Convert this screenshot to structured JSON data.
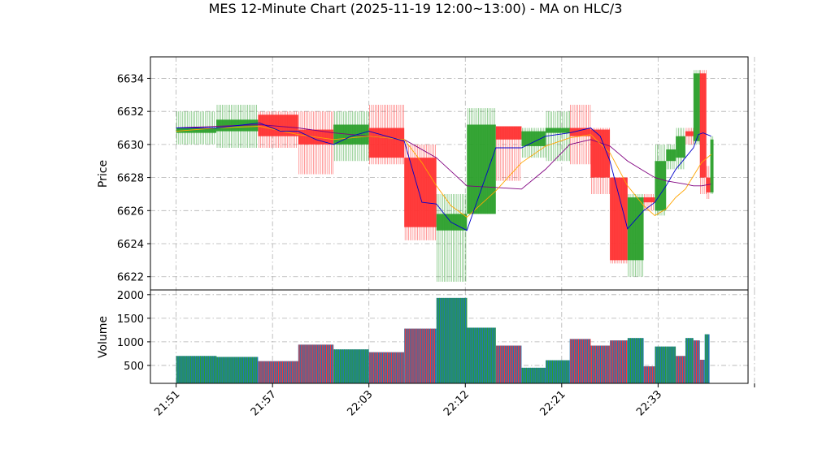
{
  "chart_data": [
    {
      "type": "candlestick",
      "title": "MES 12-Minute Chart (2025-11-19 12:00~13:00) - MA on HLC/3",
      "ylabel": "Price",
      "ylim": [
        6621.2,
        6635.3
      ],
      "yticks": [
        6622,
        6624,
        6626,
        6628,
        6630,
        6632,
        6634
      ],
      "xticks": [
        "21:51",
        "21:57",
        "22:03",
        "22:12",
        "22:21",
        "22:33"
      ],
      "grid": true,
      "colors": {
        "up": "#2ca02c",
        "down": "#ff3333",
        "ma_fast": "#0000cc",
        "ma_mid": "#ffa500",
        "ma_slow": "#800080"
      },
      "candles": [
        {
          "t": 0,
          "w": 2.5,
          "o": 6630.7,
          "h": 6632.0,
          "l": 6630.0,
          "c": 6631.0
        },
        {
          "t": 2.5,
          "w": 2.6,
          "o": 6630.8,
          "h": 6632.4,
          "l": 6629.8,
          "c": 6631.5
        },
        {
          "t": 5.1,
          "w": 2.5,
          "o": 6631.8,
          "h": 6632.0,
          "l": 6629.8,
          "c": 6630.5
        },
        {
          "t": 7.6,
          "w": 2.2,
          "o": 6630.9,
          "h": 6632.0,
          "l": 6628.2,
          "c": 6630.0
        },
        {
          "t": 9.8,
          "w": 2.2,
          "o": 6630.0,
          "h": 6632.0,
          "l": 6629.0,
          "c": 6631.2
        },
        {
          "t": 12.0,
          "w": 2.2,
          "o": 6631.0,
          "h": 6632.4,
          "l": 6628.8,
          "c": 6629.2
        },
        {
          "t": 14.2,
          "w": 2.0,
          "o": 6629.2,
          "h": 6630.0,
          "l": 6624.2,
          "c": 6625.0
        },
        {
          "t": 16.2,
          "w": 1.9,
          "o": 6624.8,
          "h": 6627.0,
          "l": 6621.7,
          "c": 6625.8
        },
        {
          "t": 18.1,
          "w": 1.8,
          "o": 6625.8,
          "h": 6632.2,
          "l": 6625.8,
          "c": 6631.2
        },
        {
          "t": 19.9,
          "w": 1.6,
          "o": 6631.1,
          "h": 6631.1,
          "l": 6627.8,
          "c": 6630.3
        },
        {
          "t": 21.5,
          "w": 1.5,
          "o": 6629.9,
          "h": 6631.0,
          "l": 6629.2,
          "c": 6630.8
        },
        {
          "t": 23.0,
          "w": 1.5,
          "o": 6630.7,
          "h": 6632.0,
          "l": 6629.0,
          "c": 6631.0
        },
        {
          "t": 24.5,
          "w": 1.3,
          "o": 6631.0,
          "h": 6632.4,
          "l": 6628.8,
          "c": 6630.5
        },
        {
          "t": 25.8,
          "w": 1.2,
          "o": 6630.9,
          "h": 6631.0,
          "l": 6627.0,
          "c": 6628.0
        },
        {
          "t": 27.0,
          "w": 1.1,
          "o": 6628.0,
          "h": 6628.0,
          "l": 6622.8,
          "c": 6623.0
        },
        {
          "t": 28.1,
          "w": 1.0,
          "o": 6623.0,
          "h": 6627.0,
          "l": 6622.0,
          "c": 6626.8
        },
        {
          "t": 29.1,
          "w": 0.7,
          "o": 6626.8,
          "h": 6627.0,
          "l": 6626.0,
          "c": 6626.5
        },
        {
          "t": 29.8,
          "w": 0.7,
          "o": 6626.0,
          "h": 6630.0,
          "l": 6625.7,
          "c": 6629.0
        },
        {
          "t": 30.5,
          "w": 0.6,
          "o": 6629.0,
          "h": 6630.0,
          "l": 6628.5,
          "c": 6629.7
        },
        {
          "t": 31.1,
          "w": 0.6,
          "o": 6629.2,
          "h": 6631.0,
          "l": 6628.5,
          "c": 6630.5
        },
        {
          "t": 31.7,
          "w": 0.5,
          "o": 6630.8,
          "h": 6631.0,
          "l": 6630.0,
          "c": 6630.5
        },
        {
          "t": 32.2,
          "w": 0.4,
          "o": 6630.2,
          "h": 6634.5,
          "l": 6630.0,
          "c": 6634.3
        },
        {
          "t": 32.6,
          "w": 0.4,
          "o": 6634.3,
          "h": 6634.5,
          "l": 6627.0,
          "c": 6628.0
        },
        {
          "t": 33.0,
          "w": 0.25,
          "o": 6628.0,
          "h": 6628.7,
          "l": 6626.7,
          "c": 6627.1
        },
        {
          "t": 33.25,
          "w": 0.2,
          "o": 6627.1,
          "h": 6630.5,
          "l": 6627.0,
          "c": 6630.3
        }
      ],
      "ma_fast": [
        [
          0,
          6631.0
        ],
        [
          2.5,
          6631.0
        ],
        [
          5.2,
          6631.3
        ],
        [
          6.5,
          6630.8
        ],
        [
          7.6,
          6630.8
        ],
        [
          8.7,
          6630.3
        ],
        [
          9.8,
          6630.0
        ],
        [
          10.9,
          6630.5
        ],
        [
          12.0,
          6630.8
        ],
        [
          13.1,
          6630.5
        ],
        [
          14.2,
          6630.2
        ],
        [
          15.3,
          6626.5
        ],
        [
          16.2,
          6626.4
        ],
        [
          17.1,
          6625.3
        ],
        [
          18.1,
          6624.8
        ],
        [
          19.9,
          6629.8
        ],
        [
          21.5,
          6629.8
        ],
        [
          23.0,
          6630.5
        ],
        [
          24.5,
          6630.7
        ],
        [
          25.8,
          6631.0
        ],
        [
          26.4,
          6630.5
        ],
        [
          27.0,
          6629.0
        ],
        [
          28.1,
          6624.9
        ],
        [
          29.1,
          6626.0
        ],
        [
          29.8,
          6626.5
        ],
        [
          30.5,
          6627.5
        ],
        [
          31.1,
          6628.5
        ],
        [
          31.7,
          6629.2
        ],
        [
          32.2,
          6629.8
        ],
        [
          32.5,
          6630.6
        ],
        [
          32.8,
          6630.7
        ],
        [
          33.3,
          6630.5
        ]
      ],
      "ma_mid": [
        [
          0,
          6630.8
        ],
        [
          2.5,
          6631.0
        ],
        [
          5.2,
          6631.1
        ],
        [
          7.6,
          6630.6
        ],
        [
          9.8,
          6630.3
        ],
        [
          12.0,
          6630.5
        ],
        [
          14.2,
          6630.3
        ],
        [
          15.3,
          6628.9
        ],
        [
          16.2,
          6627.5
        ],
        [
          17.1,
          6626.3
        ],
        [
          18.1,
          6625.6
        ],
        [
          19.9,
          6627.2
        ],
        [
          21.5,
          6628.9
        ],
        [
          23.0,
          6629.9
        ],
        [
          24.5,
          6630.4
        ],
        [
          25.8,
          6630.6
        ],
        [
          27.0,
          6629.5
        ],
        [
          28.1,
          6627.5
        ],
        [
          29.1,
          6626.3
        ],
        [
          29.8,
          6625.7
        ],
        [
          30.5,
          6626.1
        ],
        [
          31.1,
          6626.8
        ],
        [
          31.7,
          6627.3
        ],
        [
          32.2,
          6628.1
        ],
        [
          32.7,
          6628.9
        ],
        [
          33.3,
          6629.4
        ]
      ],
      "ma_slow": [
        [
          0,
          6631.0
        ],
        [
          2.5,
          6631.1
        ],
        [
          5.2,
          6631.2
        ],
        [
          7.6,
          6631.0
        ],
        [
          9.8,
          6630.7
        ],
        [
          12.0,
          6630.5
        ],
        [
          14.2,
          6630.3
        ],
        [
          16.2,
          6629.2
        ],
        [
          18.1,
          6627.5
        ],
        [
          19.9,
          6627.4
        ],
        [
          21.5,
          6627.3
        ],
        [
          23.0,
          6628.5
        ],
        [
          24.5,
          6630.0
        ],
        [
          25.8,
          6630.3
        ],
        [
          27.0,
          6629.9
        ],
        [
          28.1,
          6629.0
        ],
        [
          29.1,
          6628.4
        ],
        [
          29.8,
          6628.0
        ],
        [
          30.5,
          6627.8
        ],
        [
          31.1,
          6627.7
        ],
        [
          31.7,
          6627.6
        ],
        [
          32.2,
          6627.5
        ],
        [
          32.7,
          6627.5
        ],
        [
          33.3,
          6627.6
        ]
      ]
    },
    {
      "type": "bar",
      "ylabel": "Volume",
      "ylim": [
        120,
        2100
      ],
      "yticks": [
        500,
        1000,
        1500,
        2000
      ],
      "grid": true,
      "bars": [
        {
          "t": 0,
          "w": 2.5,
          "v": 700,
          "dir": "up"
        },
        {
          "t": 2.5,
          "w": 2.6,
          "v": 680,
          "dir": "up"
        },
        {
          "t": 5.1,
          "w": 2.5,
          "v": 590,
          "dir": "down"
        },
        {
          "t": 7.6,
          "w": 2.2,
          "v": 940,
          "dir": "down"
        },
        {
          "t": 9.8,
          "w": 2.2,
          "v": 840,
          "dir": "up"
        },
        {
          "t": 12.0,
          "w": 2.2,
          "v": 780,
          "dir": "down"
        },
        {
          "t": 14.2,
          "w": 2.0,
          "v": 1280,
          "dir": "down"
        },
        {
          "t": 16.2,
          "w": 1.9,
          "v": 1930,
          "dir": "up"
        },
        {
          "t": 18.1,
          "w": 1.8,
          "v": 1300,
          "dir": "up"
        },
        {
          "t": 19.9,
          "w": 1.6,
          "v": 920,
          "dir": "down"
        },
        {
          "t": 21.5,
          "w": 1.5,
          "v": 450,
          "dir": "up"
        },
        {
          "t": 23.0,
          "w": 1.5,
          "v": 610,
          "dir": "up"
        },
        {
          "t": 24.5,
          "w": 1.3,
          "v": 1060,
          "dir": "down"
        },
        {
          "t": 25.8,
          "w": 1.2,
          "v": 920,
          "dir": "down"
        },
        {
          "t": 27.0,
          "w": 1.1,
          "v": 1030,
          "dir": "down"
        },
        {
          "t": 28.1,
          "w": 1.0,
          "v": 1080,
          "dir": "up"
        },
        {
          "t": 29.1,
          "w": 0.7,
          "v": 480,
          "dir": "down"
        },
        {
          "t": 29.8,
          "w": 0.7,
          "v": 900,
          "dir": "up"
        },
        {
          "t": 30.5,
          "w": 0.6,
          "v": 900,
          "dir": "up"
        },
        {
          "t": 31.1,
          "w": 0.6,
          "v": 700,
          "dir": "down"
        },
        {
          "t": 31.7,
          "w": 0.5,
          "v": 1080,
          "dir": "up"
        },
        {
          "t": 32.2,
          "w": 0.4,
          "v": 1030,
          "dir": "down"
        },
        {
          "t": 32.6,
          "w": 0.3,
          "v": 620,
          "dir": "down"
        },
        {
          "t": 32.9,
          "w": 0.3,
          "v": 1160,
          "dir": "up"
        }
      ]
    }
  ],
  "x_domain": [
    -1.6,
    35.6
  ],
  "xtick_positions": [
    0,
    6,
    12,
    18,
    24,
    30,
    36
  ]
}
